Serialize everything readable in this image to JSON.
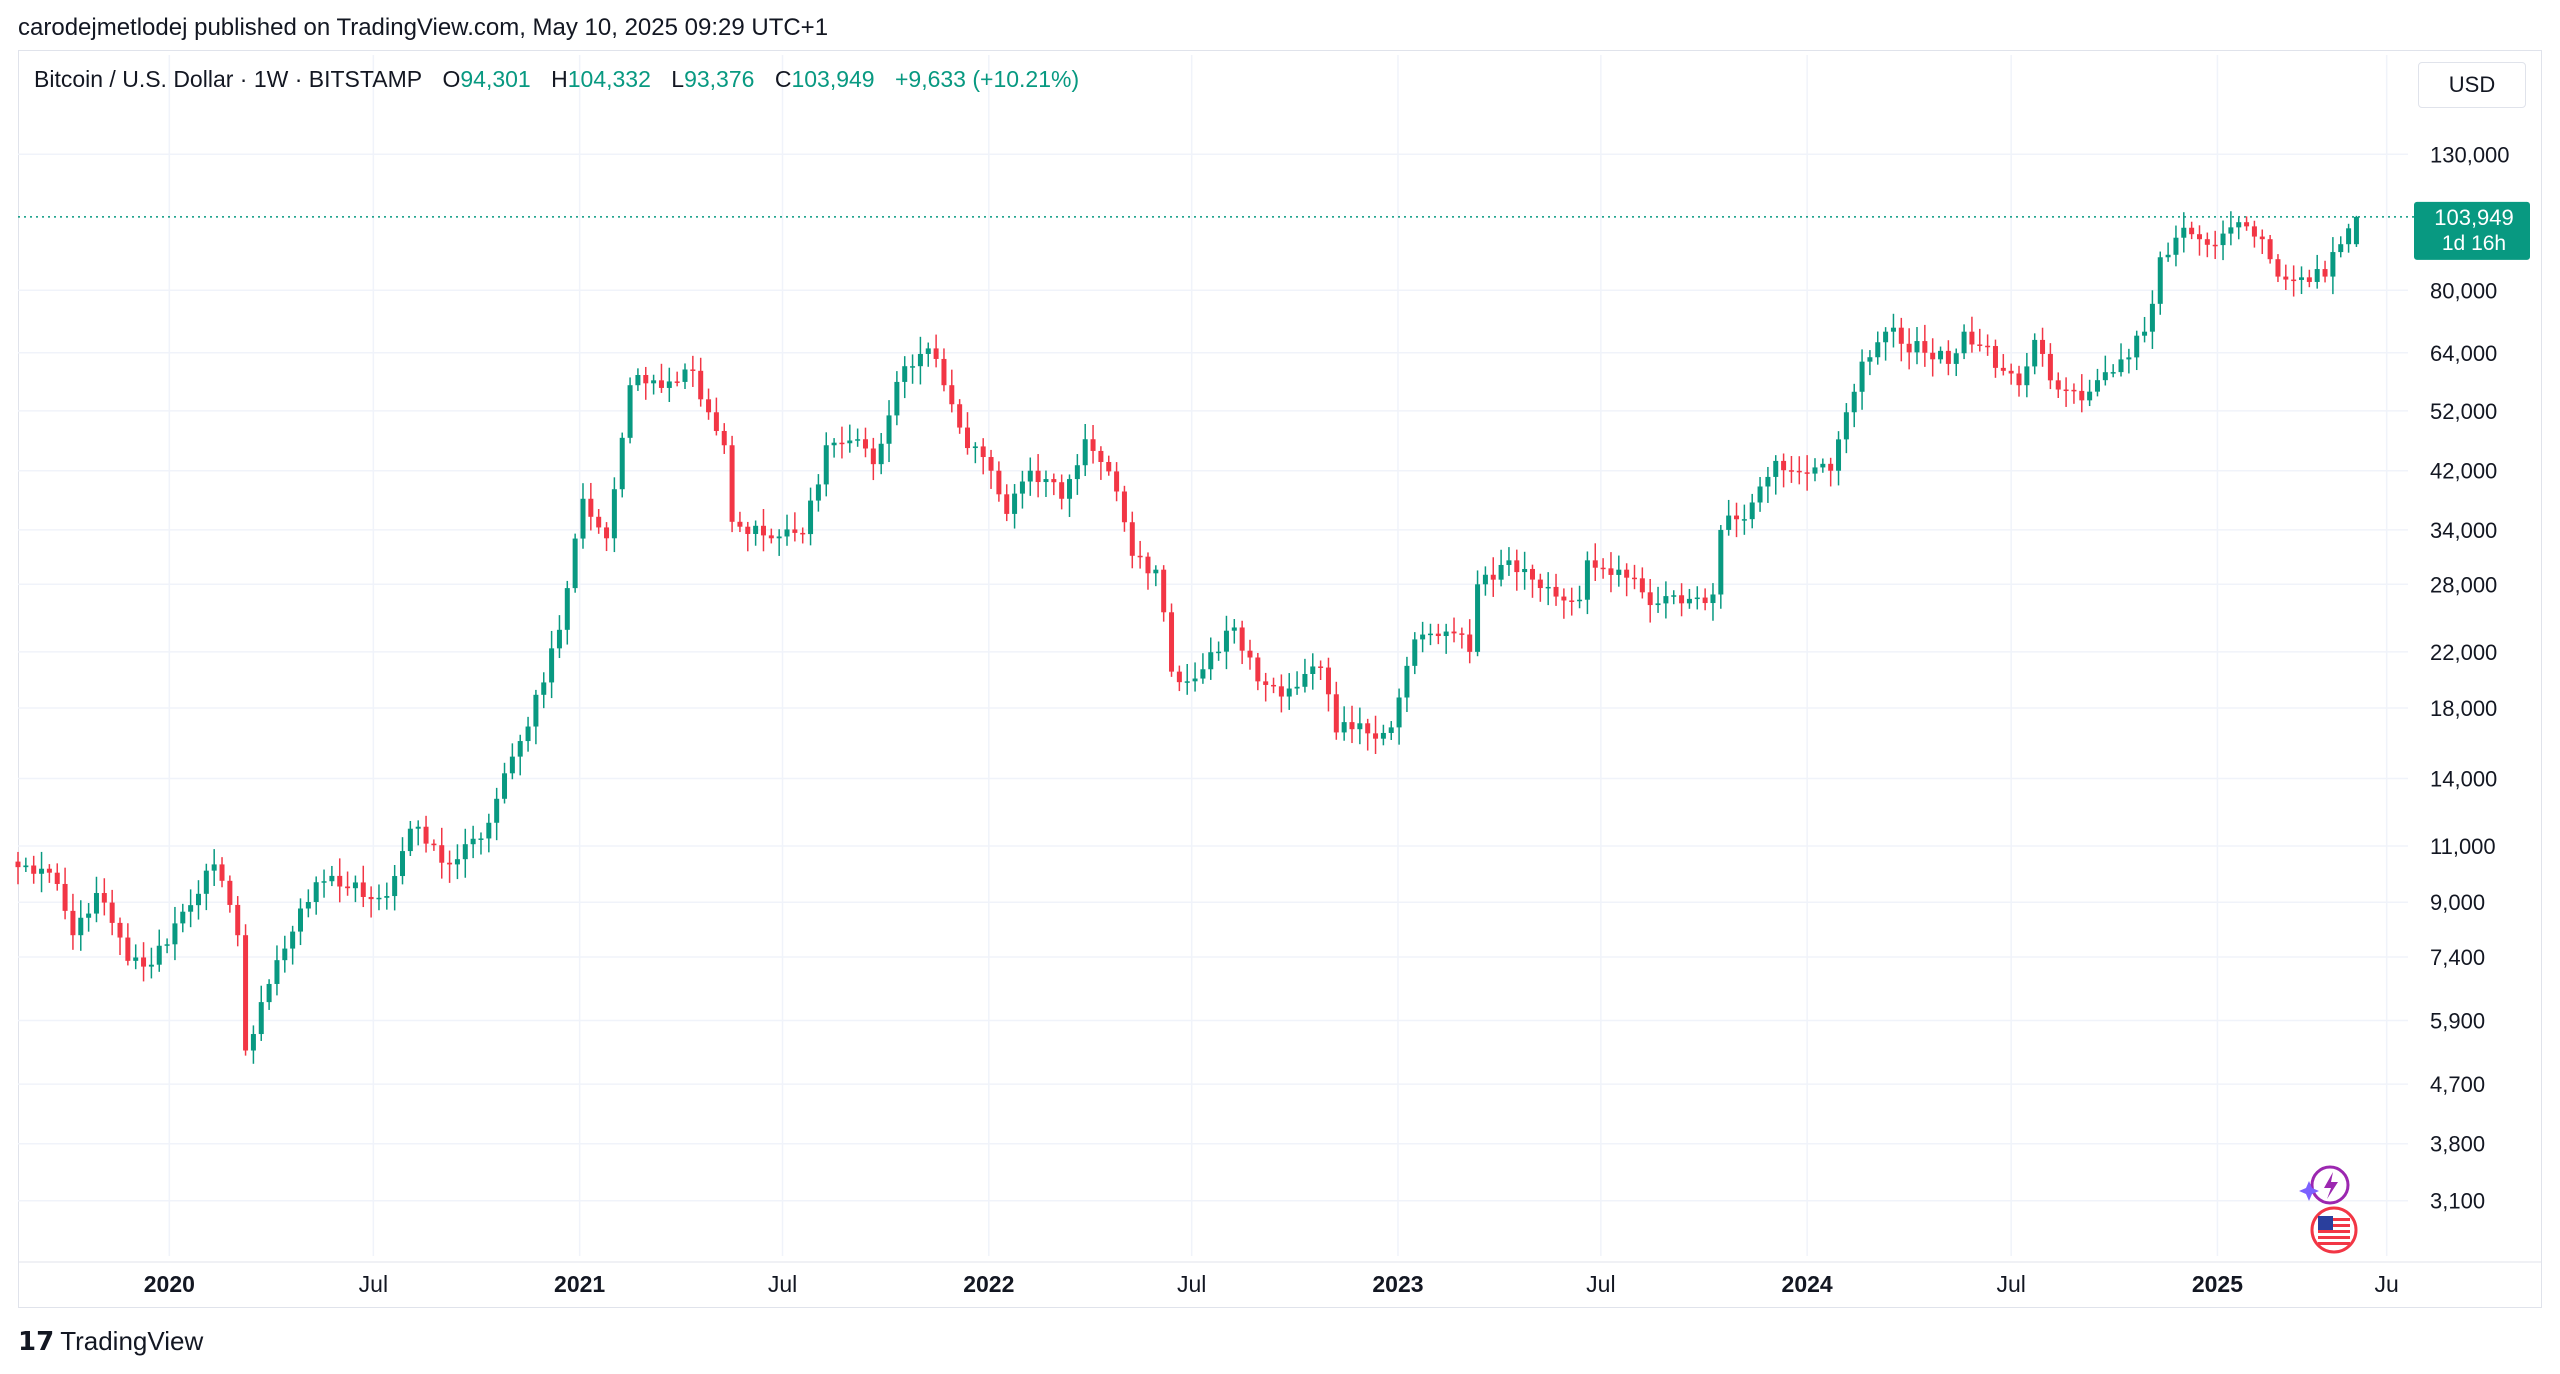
{
  "header": {
    "published_line": "carodejmetlodej published on TradingView.com, May 10, 2025 09:29 UTC+1"
  },
  "legend": {
    "symbol": "Bitcoin / U.S. Dollar · 1W · BITSTAMP",
    "open_label": "O",
    "open_value": "94,301",
    "high_label": "H",
    "high_value": "104,332",
    "low_label": "L",
    "low_value": "93,376",
    "close_label": "C",
    "close_value": "103,949",
    "change": "+9,633 (+10.21%)"
  },
  "toolbar": {
    "currency": "USD"
  },
  "last_price": {
    "price": "103,949",
    "countdown": "1d 16h"
  },
  "footer": {
    "brand": "TradingView",
    "logo_glyph": "17"
  },
  "colors": {
    "up": "#089981",
    "down": "#f23645",
    "grid": "#f0f3fa",
    "price_line": "#089981"
  },
  "icons": [
    "lightning-badge-icon",
    "us-flag-icon"
  ],
  "chart_data": {
    "type": "candlestick",
    "title": "Bitcoin / U.S. Dollar · 1W · BITSTAMP",
    "y_scale": "log",
    "ylim": [
      2600,
      155000
    ],
    "y_ticks": [
      3100,
      3800,
      4700,
      5900,
      7400,
      9000,
      11000,
      14000,
      18000,
      22000,
      28000,
      34000,
      42000,
      52000,
      64000,
      80000,
      130000
    ],
    "y_tick_labels": [
      "3,100",
      "3,800",
      "4,700",
      "5,900",
      "7,400",
      "9,000",
      "11,000",
      "14,000",
      "18,000",
      "22,000",
      "28,000",
      "34,000",
      "42,000",
      "52,000",
      "64,000",
      "80,000",
      "130,000"
    ],
    "xlim": [
      "2019-08-19",
      "2025-06-20"
    ],
    "x_ticks": [
      {
        "date": "2020-01-01",
        "label": "2020",
        "bold": true
      },
      {
        "date": "2020-07-01",
        "label": "Jul",
        "bold": false
      },
      {
        "date": "2021-01-01",
        "label": "2021",
        "bold": true
      },
      {
        "date": "2021-07-01",
        "label": "Jul",
        "bold": false
      },
      {
        "date": "2022-01-01",
        "label": "2022",
        "bold": true
      },
      {
        "date": "2022-07-01",
        "label": "Jul",
        "bold": false
      },
      {
        "date": "2023-01-01",
        "label": "2023",
        "bold": true
      },
      {
        "date": "2023-07-01",
        "label": "Jul",
        "bold": false
      },
      {
        "date": "2024-01-01",
        "label": "2024",
        "bold": true
      },
      {
        "date": "2024-07-01",
        "label": "Jul",
        "bold": false
      },
      {
        "date": "2025-01-01",
        "label": "2025",
        "bold": true
      },
      {
        "date": "2025-06-01",
        "label": "Ju",
        "bold": false
      }
    ],
    "weekly_close_anchors": [
      {
        "date": "2019-08-19",
        "close": 10200
      },
      {
        "date": "2019-09-16",
        "close": 10000
      },
      {
        "date": "2019-10-07",
        "close": 8000
      },
      {
        "date": "2019-10-28",
        "close": 9300
      },
      {
        "date": "2019-11-25",
        "close": 7300
      },
      {
        "date": "2019-12-16",
        "close": 7200
      },
      {
        "date": "2020-01-13",
        "close": 8700
      },
      {
        "date": "2020-02-10",
        "close": 10300
      },
      {
        "date": "2020-03-02",
        "close": 8000
      },
      {
        "date": "2020-03-09",
        "close": 5300
      },
      {
        "date": "2020-03-23",
        "close": 6300
      },
      {
        "date": "2020-04-27",
        "close": 8800
      },
      {
        "date": "2020-05-18",
        "close": 9700
      },
      {
        "date": "2020-07-13",
        "close": 9200
      },
      {
        "date": "2020-08-03",
        "close": 11700
      },
      {
        "date": "2020-09-07",
        "close": 10300
      },
      {
        "date": "2020-10-05",
        "close": 11300
      },
      {
        "date": "2020-11-09",
        "close": 16000
      },
      {
        "date": "2020-12-14",
        "close": 23800
      },
      {
        "date": "2021-01-04",
        "close": 38000
      },
      {
        "date": "2021-01-25",
        "close": 33000
      },
      {
        "date": "2021-02-15",
        "close": 57000
      },
      {
        "date": "2021-03-08",
        "close": 58000
      },
      {
        "date": "2021-04-12",
        "close": 60000
      },
      {
        "date": "2021-05-10",
        "close": 46000
      },
      {
        "date": "2021-05-17",
        "close": 35000
      },
      {
        "date": "2021-06-21",
        "close": 33000
      },
      {
        "date": "2021-07-19",
        "close": 33500
      },
      {
        "date": "2021-08-09",
        "close": 46000
      },
      {
        "date": "2021-09-06",
        "close": 47000
      },
      {
        "date": "2021-09-20",
        "close": 43000
      },
      {
        "date": "2021-10-18",
        "close": 61000
      },
      {
        "date": "2021-11-08",
        "close": 65000
      },
      {
        "date": "2021-11-22",
        "close": 57000
      },
      {
        "date": "2021-12-06",
        "close": 49000
      },
      {
        "date": "2022-01-03",
        "close": 42000
      },
      {
        "date": "2022-01-17",
        "close": 36000
      },
      {
        "date": "2022-02-07",
        "close": 42000
      },
      {
        "date": "2022-03-07",
        "close": 38000
      },
      {
        "date": "2022-03-28",
        "close": 47000
      },
      {
        "date": "2022-04-25",
        "close": 39000
      },
      {
        "date": "2022-05-09",
        "close": 31000
      },
      {
        "date": "2022-05-30",
        "close": 29500
      },
      {
        "date": "2022-06-13",
        "close": 20500
      },
      {
        "date": "2022-07-04",
        "close": 20000
      },
      {
        "date": "2022-08-08",
        "close": 24000
      },
      {
        "date": "2022-08-29",
        "close": 19800
      },
      {
        "date": "2022-09-26",
        "close": 19300
      },
      {
        "date": "2022-10-24",
        "close": 20800
      },
      {
        "date": "2022-11-07",
        "close": 16500
      },
      {
        "date": "2022-12-26",
        "close": 16800
      },
      {
        "date": "2023-01-16",
        "close": 23000
      },
      {
        "date": "2023-02-20",
        "close": 23500
      },
      {
        "date": "2023-03-06",
        "close": 22000
      },
      {
        "date": "2023-03-13",
        "close": 28000
      },
      {
        "date": "2023-04-10",
        "close": 30500
      },
      {
        "date": "2023-05-22",
        "close": 26800
      },
      {
        "date": "2023-06-12",
        "close": 26500
      },
      {
        "date": "2023-06-19",
        "close": 30500
      },
      {
        "date": "2023-07-17",
        "close": 29500
      },
      {
        "date": "2023-08-14",
        "close": 26000
      },
      {
        "date": "2023-10-09",
        "close": 27000
      },
      {
        "date": "2023-10-16",
        "close": 34000
      },
      {
        "date": "2023-11-13",
        "close": 37500
      },
      {
        "date": "2023-12-04",
        "close": 43500
      },
      {
        "date": "2024-01-08",
        "close": 42500
      },
      {
        "date": "2024-01-22",
        "close": 42000
      },
      {
        "date": "2024-02-19",
        "close": 62000
      },
      {
        "date": "2024-03-11",
        "close": 69000
      },
      {
        "date": "2024-04-15",
        "close": 64000
      },
      {
        "date": "2024-05-06",
        "close": 61500
      },
      {
        "date": "2024-05-20",
        "close": 69000
      },
      {
        "date": "2024-06-24",
        "close": 60000
      },
      {
        "date": "2024-07-08",
        "close": 57000
      },
      {
        "date": "2024-07-22",
        "close": 67000
      },
      {
        "date": "2024-08-05",
        "close": 58000
      },
      {
        "date": "2024-09-02",
        "close": 54000
      },
      {
        "date": "2024-10-07",
        "close": 62500
      },
      {
        "date": "2024-10-28",
        "close": 69000
      },
      {
        "date": "2024-11-11",
        "close": 90000
      },
      {
        "date": "2024-12-02",
        "close": 100000
      },
      {
        "date": "2024-12-16",
        "close": 96000
      },
      {
        "date": "2024-12-30",
        "close": 94000
      },
      {
        "date": "2025-01-20",
        "close": 102000
      },
      {
        "date": "2025-02-10",
        "close": 96000
      },
      {
        "date": "2025-02-24",
        "close": 84000
      },
      {
        "date": "2025-03-10",
        "close": 83000
      },
      {
        "date": "2025-04-07",
        "close": 84000
      },
      {
        "date": "2025-04-21",
        "close": 94300
      },
      {
        "date": "2025-05-05",
        "close": 103949
      }
    ],
    "last_candle": {
      "date": "2025-05-05",
      "open": 94301,
      "high": 104332,
      "low": 93376,
      "close": 103949
    },
    "last_price": 103949
  }
}
